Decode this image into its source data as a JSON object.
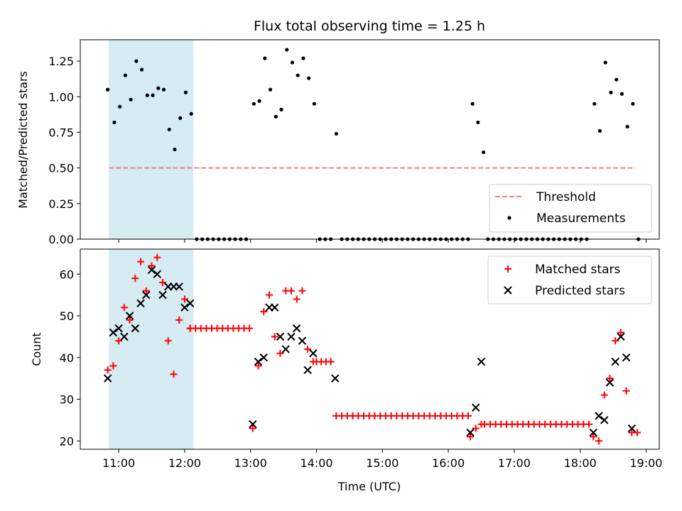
{
  "colors": {
    "shade": "#add8e6",
    "threshold": "#f08080",
    "matched": "#ff0000",
    "predicted": "#000000",
    "measurement": "#000000"
  },
  "chart_data": [
    {
      "type": "scatter",
      "title": "Flux total observing time = 1.25 h",
      "ylabel": "Matched/Predicted stars",
      "xlabel": "",
      "xlim": [
        "10:25",
        "19:12"
      ],
      "ylim": [
        0,
        1.4
      ],
      "yticks": [
        0,
        0.25,
        0.5,
        0.75,
        1.0,
        1.25
      ],
      "ytick_labels": [
        "0.00",
        "0.25",
        "0.50",
        "0.75",
        "1.00",
        "1.25"
      ],
      "shaded_span": [
        "10:51",
        "12:08"
      ],
      "legend": {
        "placement": "lower right",
        "entries": [
          "Threshold",
          "Measurements"
        ]
      },
      "threshold": {
        "name": "Threshold",
        "y": 0.5,
        "x_range": [
          "10:51",
          "18:50"
        ]
      },
      "series": [
        {
          "name": "Measurements",
          "points": [
            [
              "10:50",
              1.05
            ],
            [
              "10:56",
              0.82
            ],
            [
              "11:01",
              0.93
            ],
            [
              "11:06",
              1.15
            ],
            [
              "11:11",
              0.98
            ],
            [
              "11:16",
              1.25
            ],
            [
              "11:21",
              1.19
            ],
            [
              "11:26",
              1.01
            ],
            [
              "11:31",
              1.01
            ],
            [
              "11:36",
              1.06
            ],
            [
              "11:41",
              1.05
            ],
            [
              "11:46",
              0.77
            ],
            [
              "11:51",
              0.63
            ],
            [
              "11:56",
              0.85
            ],
            [
              "12:01",
              1.03
            ],
            [
              "12:06",
              0.88
            ],
            [
              "13:03",
              0.95
            ],
            [
              "13:08",
              0.97
            ],
            [
              "13:13",
              1.27
            ],
            [
              "13:18",
              1.05
            ],
            [
              "13:23",
              0.86
            ],
            [
              "13:28",
              0.91
            ],
            [
              "13:33",
              1.33
            ],
            [
              "13:38",
              1.24
            ],
            [
              "13:43",
              1.15
            ],
            [
              "13:48",
              1.27
            ],
            [
              "13:53",
              1.13
            ],
            [
              "13:58",
              0.95
            ],
            [
              "14:18",
              0.74
            ],
            [
              "16:22",
              0.95
            ],
            [
              "16:27",
              0.82
            ],
            [
              "16:32",
              0.61
            ],
            [
              "18:13",
              0.95
            ],
            [
              "18:18",
              0.76
            ],
            [
              "18:23",
              1.24
            ],
            [
              "18:28",
              1.03
            ],
            [
              "18:33",
              1.12
            ],
            [
              "18:38",
              1.02
            ],
            [
              "18:43",
              0.79
            ],
            [
              "18:48",
              0.95
            ]
          ],
          "zero_ranges": [
            [
              "12:11",
              "12:59",
              5
            ],
            [
              "14:03",
              "14:13",
              5
            ],
            [
              "14:23",
              "16:18",
              5
            ],
            [
              "16:36",
              "18:06",
              5
            ],
            [
              "18:53",
              "18:53",
              5
            ]
          ]
        }
      ]
    },
    {
      "type": "scatter",
      "title": "",
      "ylabel": "Count",
      "xlabel": "Time (UTC)",
      "xlim": [
        "10:25",
        "19:12"
      ],
      "ylim": [
        18,
        66
      ],
      "yticks": [
        20,
        30,
        40,
        50,
        60
      ],
      "xticks": [
        "11:00",
        "12:00",
        "13:00",
        "14:00",
        "15:00",
        "16:00",
        "17:00",
        "18:00",
        "19:00"
      ],
      "shaded_span": [
        "10:51",
        "12:08"
      ],
      "legend": {
        "placement": "upper right",
        "entries": [
          "Matched stars",
          "Predicted stars"
        ]
      },
      "series": [
        {
          "name": "Matched stars",
          "marker": "+",
          "points": [
            [
              "10:50",
              37
            ],
            [
              "10:55",
              38
            ],
            [
              "11:00",
              44
            ],
            [
              "11:05",
              52
            ],
            [
              "11:10",
              49
            ],
            [
              "11:15",
              59
            ],
            [
              "11:20",
              63
            ],
            [
              "11:25",
              56
            ],
            [
              "11:30",
              62
            ],
            [
              "11:35",
              64
            ],
            [
              "11:40",
              58
            ],
            [
              "11:45",
              44
            ],
            [
              "11:50",
              36
            ],
            [
              "11:55",
              49
            ],
            [
              "12:00",
              54
            ],
            [
              "12:05",
              47
            ],
            [
              "13:02",
              23
            ],
            [
              "13:07",
              38
            ],
            [
              "13:12",
              51
            ],
            [
              "13:17",
              55
            ],
            [
              "13:22",
              45
            ],
            [
              "13:27",
              41
            ],
            [
              "13:32",
              56
            ],
            [
              "13:37",
              56
            ],
            [
              "13:42",
              54
            ],
            [
              "13:47",
              56
            ],
            [
              "13:52",
              42
            ],
            [
              "13:57",
              39
            ],
            [
              "16:20",
              21
            ],
            [
              "16:25",
              23
            ],
            [
              "16:30",
              24
            ],
            [
              "18:12",
              21
            ],
            [
              "18:17",
              20
            ],
            [
              "18:22",
              31
            ],
            [
              "18:27",
              35
            ],
            [
              "18:32",
              44
            ],
            [
              "18:37",
              46
            ],
            [
              "18:42",
              32
            ],
            [
              "18:47",
              22
            ],
            [
              "18:52",
              22
            ]
          ],
          "flat_runs": [
            [
              "12:05",
              "12:59",
              47,
              12
            ],
            [
              "14:00",
              "14:13",
              39,
              4
            ],
            [
              "14:18",
              "16:18",
              26,
              25
            ],
            [
              "16:33",
              "18:08",
              24,
              20
            ]
          ]
        },
        {
          "name": "Predicted stars",
          "marker": "x",
          "points": [
            [
              "10:50",
              35
            ],
            [
              "10:55",
              46
            ],
            [
              "11:00",
              47
            ],
            [
              "11:05",
              45
            ],
            [
              "11:10",
              50
            ],
            [
              "11:15",
              47
            ],
            [
              "11:20",
              53
            ],
            [
              "11:25",
              55
            ],
            [
              "11:30",
              61
            ],
            [
              "11:35",
              60
            ],
            [
              "11:40",
              55
            ],
            [
              "11:45",
              57
            ],
            [
              "11:50",
              57
            ],
            [
              "11:55",
              57
            ],
            [
              "12:00",
              52
            ],
            [
              "12:05",
              53
            ],
            [
              "13:02",
              24
            ],
            [
              "13:07",
              39
            ],
            [
              "13:12",
              40
            ],
            [
              "13:17",
              52
            ],
            [
              "13:22",
              52
            ],
            [
              "13:27",
              45
            ],
            [
              "13:32",
              42
            ],
            [
              "13:37",
              45
            ],
            [
              "13:42",
              47
            ],
            [
              "13:47",
              44
            ],
            [
              "13:52",
              37
            ],
            [
              "13:57",
              41
            ],
            [
              "14:17",
              35
            ],
            [
              "16:20",
              22
            ],
            [
              "16:25",
              28
            ],
            [
              "16:30",
              39
            ],
            [
              "18:12",
              22
            ],
            [
              "18:17",
              26
            ],
            [
              "18:22",
              25
            ],
            [
              "18:27",
              34
            ],
            [
              "18:32",
              39
            ],
            [
              "18:37",
              45
            ],
            [
              "18:42",
              40
            ],
            [
              "18:47",
              23
            ]
          ]
        }
      ]
    }
  ]
}
